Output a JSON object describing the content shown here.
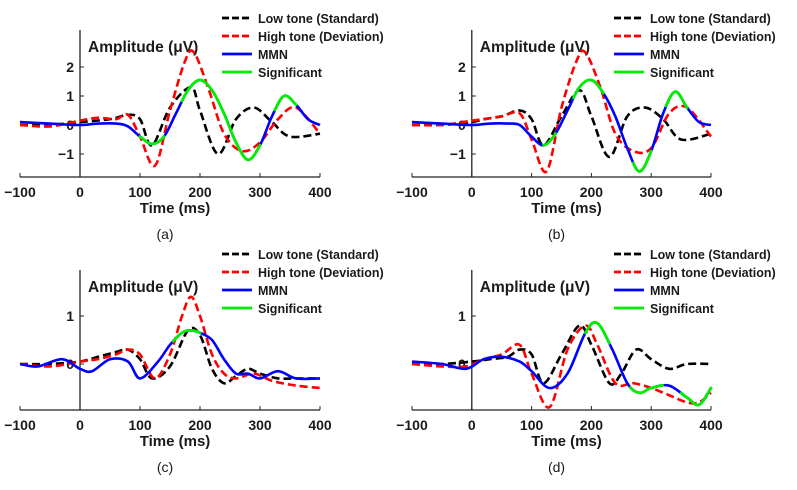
{
  "figure": {
    "legend": [
      {
        "label": "Low tone (Standard)",
        "color": "#000000",
        "dash": true
      },
      {
        "label": "High tone (Deviation)",
        "color": "#ff0000",
        "dash": true
      },
      {
        "label": "MMN",
        "color": "#0000ff",
        "dash": false
      },
      {
        "label": "Significant",
        "color": "#00ee00",
        "dash": false
      }
    ],
    "xlabel": "Time (ms)",
    "ylabel": "Amplitude (μV)"
  },
  "chart_data": [
    {
      "type": "line",
      "panel_label": "(a)",
      "xlabel": "Time (ms)",
      "ylabel": "Amplitude (μV)",
      "xlim": [
        -100,
        400
      ],
      "ylim": [
        -1.8,
        3.1
      ],
      "xticks": [
        -100,
        0,
        100,
        200,
        300,
        400
      ],
      "yticks": [
        -1,
        0,
        1,
        2
      ],
      "series": [
        {
          "name": "Low tone (Standard)",
          "x": [
            -100,
            -50,
            0,
            50,
            80,
            100,
            120,
            150,
            185,
            200,
            230,
            260,
            290,
            320,
            350,
            400
          ],
          "y": [
            0,
            0,
            0.1,
            0.2,
            0.35,
            0.2,
            -0.7,
            0.6,
            1.3,
            0.5,
            -1.0,
            0.2,
            0.6,
            0.1,
            -0.4,
            -0.3
          ]
        },
        {
          "name": "High tone (Deviation)",
          "x": [
            -100,
            -50,
            0,
            30,
            60,
            80,
            100,
            125,
            150,
            175,
            190,
            215,
            240,
            270,
            300,
            330,
            360,
            400
          ],
          "y": [
            0,
            -0.05,
            0.15,
            0.25,
            0.2,
            0.35,
            -0.4,
            -1.4,
            0.5,
            2.2,
            2.5,
            1.2,
            -0.3,
            -0.9,
            -0.6,
            0.2,
            0.6,
            -0.3
          ]
        },
        {
          "name": "MMN",
          "x": [
            -100,
            -50,
            0,
            30,
            60,
            80,
            100,
            120,
            140,
            160,
            180,
            200,
            220,
            240,
            260,
            280,
            300,
            320,
            340,
            360,
            380,
            400
          ],
          "y": [
            0.1,
            0.05,
            0,
            0.05,
            0.05,
            -0.05,
            -0.4,
            -0.65,
            -0.4,
            0.4,
            1.2,
            1.55,
            1.2,
            0.4,
            -0.6,
            -1.2,
            -0.7,
            0.3,
            1.0,
            0.7,
            0.2,
            0
          ]
        }
      ],
      "significant_x": [
        [
          100,
          140
        ],
        [
          170,
          300
        ],
        [
          325,
          360
        ]
      ]
    },
    {
      "type": "line",
      "panel_label": "(b)",
      "xlabel": "Time (ms)",
      "ylabel": "Amplitude (μV)",
      "xlim": [
        -100,
        400
      ],
      "ylim": [
        -1.8,
        3.1
      ],
      "xticks": [
        -100,
        0,
        100,
        200,
        300,
        400
      ],
      "yticks": [
        -1,
        0,
        1,
        2
      ],
      "series": [
        {
          "name": "Low tone (Standard)",
          "x": [
            -100,
            -50,
            0,
            20,
            50,
            80,
            100,
            120,
            150,
            180,
            200,
            230,
            260,
            290,
            320,
            350,
            400
          ],
          "y": [
            0,
            0,
            0.1,
            0.2,
            0.3,
            0.5,
            0.2,
            -0.7,
            0.3,
            1.2,
            0.3,
            -1.1,
            0.3,
            0.6,
            0.2,
            -0.5,
            -0.3
          ]
        },
        {
          "name": "High tone (Deviation)",
          "x": [
            -100,
            -50,
            0,
            20,
            50,
            80,
            100,
            125,
            150,
            175,
            190,
            215,
            240,
            270,
            300,
            330,
            360,
            400
          ],
          "y": [
            0,
            0,
            0.15,
            0.2,
            0.3,
            0.4,
            -0.5,
            -1.6,
            0.6,
            2.2,
            2.5,
            1.3,
            -0.3,
            -0.9,
            -0.8,
            0.4,
            0.6,
            -0.4
          ]
        },
        {
          "name": "MMN",
          "x": [
            -100,
            -50,
            0,
            30,
            60,
            80,
            100,
            120,
            140,
            160,
            180,
            200,
            220,
            240,
            260,
            280,
            300,
            320,
            340,
            360,
            380,
            400
          ],
          "y": [
            0.1,
            0.05,
            0,
            0.05,
            0.05,
            0,
            -0.4,
            -0.7,
            -0.3,
            0.5,
            1.3,
            1.55,
            1.1,
            0.3,
            -0.8,
            -1.6,
            -0.9,
            0.4,
            1.15,
            0.6,
            0.1,
            0
          ]
        }
      ],
      "significant_x": [
        [
          120,
          140
        ],
        [
          170,
          220
        ],
        [
          270,
          300
        ],
        [
          325,
          360
        ]
      ]
    },
    {
      "type": "line",
      "panel_label": "(c)",
      "xlabel": "Time (ms)",
      "ylabel": "Amplitude (μV)",
      "xlim": [
        -100,
        400
      ],
      "ylim": [
        -0.85,
        1.85
      ],
      "xticks": [
        -100,
        0,
        100,
        200,
        300,
        400
      ],
      "yticks": [
        0,
        1
      ],
      "series": [
        {
          "name": "Low tone (Standard)",
          "x": [
            -100,
            -50,
            0,
            30,
            60,
            80,
            100,
            120,
            150,
            180,
            200,
            220,
            240,
            260,
            280,
            300,
            330,
            360,
            400
          ],
          "y": [
            0,
            0,
            0.05,
            0.15,
            0.25,
            0.3,
            0.1,
            -0.3,
            -0.05,
            0.7,
            0.6,
            -0.1,
            -0.4,
            -0.25,
            -0.1,
            -0.2,
            -0.3,
            -0.3,
            -0.3
          ]
        },
        {
          "name": "High tone (Deviation)",
          "x": [
            -100,
            -50,
            0,
            30,
            60,
            80,
            100,
            125,
            150,
            170,
            185,
            200,
            220,
            240,
            260,
            290,
            320,
            360,
            400
          ],
          "y": [
            0,
            -0.05,
            0.05,
            0.1,
            0.2,
            0.3,
            0.2,
            -0.3,
            0.2,
            1.0,
            1.4,
            1.0,
            0.2,
            -0.2,
            -0.3,
            -0.2,
            -0.35,
            -0.45,
            -0.5
          ]
        },
        {
          "name": "MMN",
          "x": [
            -100,
            -70,
            -30,
            0,
            20,
            50,
            80,
            100,
            130,
            150,
            170,
            185,
            200,
            220,
            240,
            260,
            280,
            300,
            330,
            360,
            400
          ],
          "y": [
            0,
            -0.05,
            0.1,
            -0.1,
            -0.15,
            0.1,
            0.05,
            -0.3,
            0.05,
            0.4,
            0.65,
            0.7,
            0.65,
            0.5,
            0.1,
            -0.2,
            -0.2,
            -0.3,
            -0.15,
            -0.3,
            -0.3
          ]
        }
      ],
      "significant_x": [
        [
          155,
          200
        ]
      ]
    },
    {
      "type": "line",
      "panel_label": "(d)",
      "xlabel": "Time (ms)",
      "ylabel": "Amplitude (μV)",
      "xlim": [
        -100,
        400
      ],
      "ylim": [
        -0.85,
        1.85
      ],
      "xticks": [
        -100,
        0,
        100,
        200,
        300,
        400
      ],
      "yticks": [
        0,
        1
      ],
      "series": [
        {
          "name": "Low tone (Standard)",
          "x": [
            -100,
            -50,
            0,
            30,
            60,
            80,
            100,
            120,
            150,
            180,
            200,
            230,
            250,
            275,
            300,
            330,
            360,
            400
          ],
          "y": [
            0,
            0,
            0.05,
            0.1,
            0.15,
            0.3,
            0.2,
            -0.4,
            0.2,
            0.8,
            0.4,
            -0.4,
            -0.2,
            0.3,
            0.1,
            -0.1,
            0,
            0
          ]
        },
        {
          "name": "High tone (Deviation)",
          "x": [
            -100,
            -50,
            -10,
            20,
            50,
            80,
            100,
            130,
            160,
            190,
            210,
            240,
            270,
            300,
            330,
            360,
            380,
            400
          ],
          "y": [
            0,
            -0.05,
            -0.05,
            0.1,
            0.2,
            0.4,
            -0.2,
            -0.9,
            0.3,
            0.8,
            0.4,
            -0.4,
            -0.4,
            -0.5,
            -0.65,
            -0.8,
            -0.8,
            -0.6
          ]
        },
        {
          "name": "MMN",
          "x": [
            -100,
            -50,
            -10,
            20,
            50,
            80,
            100,
            130,
            160,
            190,
            210,
            235,
            260,
            280,
            300,
            330,
            360,
            380,
            400
          ],
          "y": [
            0.05,
            0,
            -0.1,
            0.1,
            0.15,
            0.05,
            -0.15,
            -0.5,
            -0.2,
            0.65,
            0.85,
            0.3,
            -0.4,
            -0.6,
            -0.5,
            -0.45,
            -0.7,
            -0.85,
            -0.5
          ]
        }
      ],
      "significant_x": [
        [
          190,
          230
        ],
        [
          265,
          320
        ],
        [
          350,
          400
        ]
      ]
    }
  ]
}
